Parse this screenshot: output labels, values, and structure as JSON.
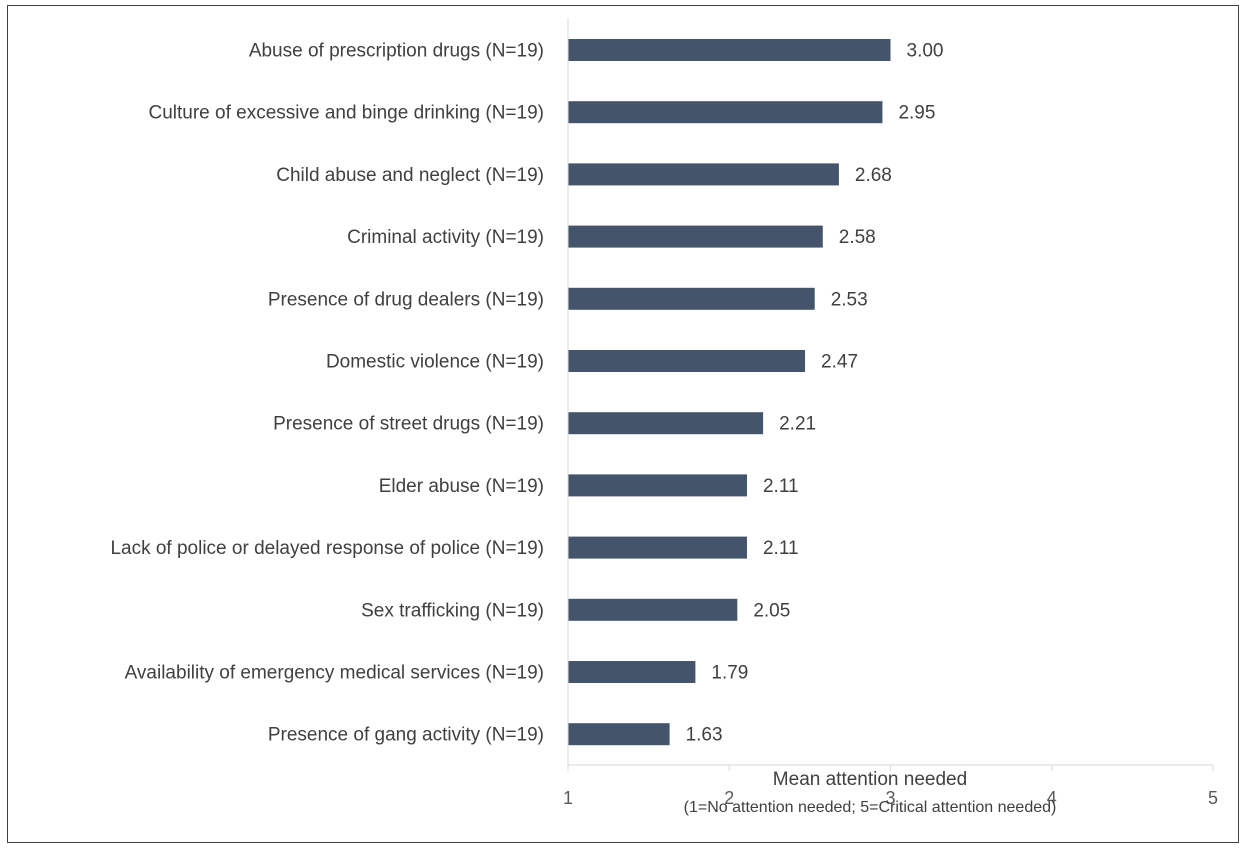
{
  "chart_data": {
    "type": "bar",
    "orientation": "horizontal",
    "categories": [
      "Abuse of prescription drugs (N=19)",
      "Culture of excessive and binge drinking (N=19)",
      "Child abuse and neglect (N=19)",
      "Criminal activity (N=19)",
      "Presence of drug dealers (N=19)",
      "Domestic violence (N=19)",
      "Presence of street drugs (N=19)",
      "Elder abuse (N=19)",
      "Lack of police or delayed response of police (N=19)",
      "Sex trafficking (N=19)",
      "Availability of emergency medical services (N=19)",
      "Presence of gang activity (N=19)"
    ],
    "values": [
      3.0,
      2.95,
      2.68,
      2.58,
      2.53,
      2.47,
      2.21,
      2.11,
      2.11,
      2.05,
      1.79,
      1.63
    ],
    "value_labels": [
      "3.00",
      "2.95",
      "2.68",
      "2.58",
      "2.53",
      "2.47",
      "2.21",
      "2.11",
      "2.11",
      "2.05",
      "1.79",
      "1.63"
    ],
    "xlabel": "Mean attention needed",
    "xlabel_sub": "(1=No attention needed; 5=Critical attention needed)",
    "xlim": [
      1,
      5
    ],
    "xticks": [
      "1",
      "2",
      "3",
      "4",
      "5"
    ],
    "grid": false,
    "bar_color": "#44546a",
    "axis_color": "#d9d9d9"
  }
}
